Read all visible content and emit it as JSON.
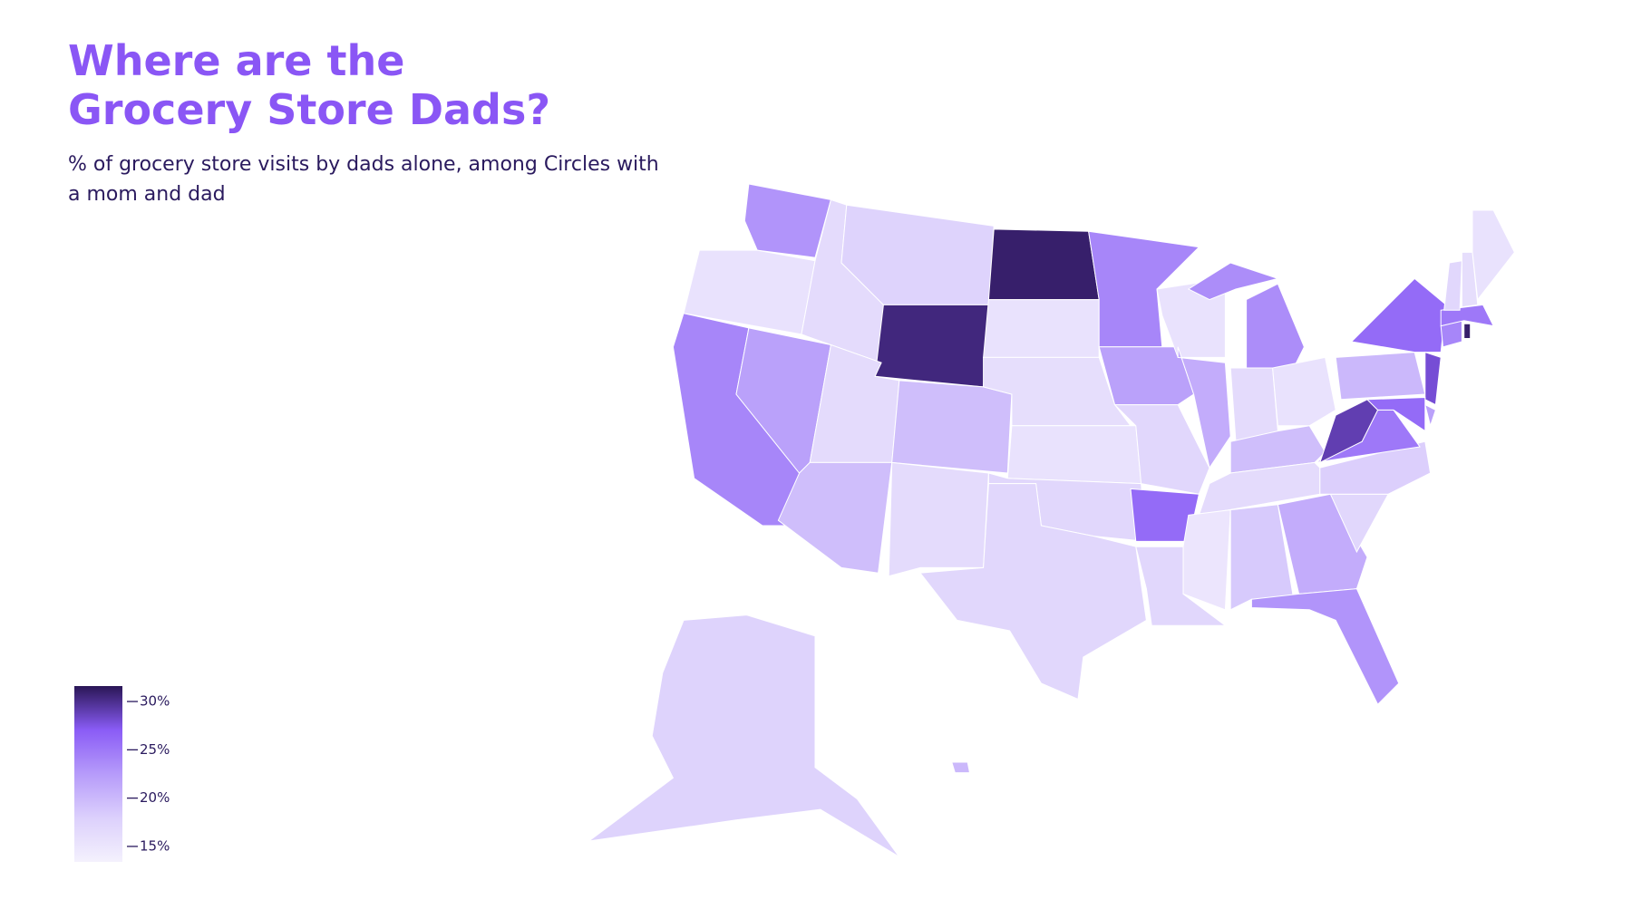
{
  "chart_data": {
    "type": "choropleth",
    "title": "Where are the Grocery Store Dads?",
    "subtitle": " % of grocery store visits by dads alone, among Circles with a mom and dad",
    "values": [
      23,
      15.5,
      24,
      22,
      16.5,
      17.5,
      30.5,
      16.5,
      19.5,
      19.5,
      16.5,
      31,
      15.5,
      16,
      15.5,
      17,
      17,
      24,
      22,
      17,
      26,
      17,
      15.5,
      21,
      23.5,
      16.5,
      15.5,
      19.5,
      16.5,
      15,
      18.5,
      21,
      23,
      17,
      18,
      25,
      29,
      20,
      26,
      28,
      22,
      26,
      24,
      31,
      25,
      17,
      16,
      15.5,
      17.5,
      20
    ],
    "clim": [
      13.4,
      31.6
    ],
    "colors": [
      "#f4f1fd",
      "#dcd0fc",
      "#b69bfa",
      "#8a5cf6",
      "#2a1656"
    ],
    "colorbar_ticks": [
      {
        "value": 30,
        "label": "30%"
      },
      {
        "value": 25,
        "label": "25%"
      },
      {
        "value": 20,
        "label": "20%"
      },
      {
        "value": 15,
        "label": "15%"
      }
    ]
  }
}
